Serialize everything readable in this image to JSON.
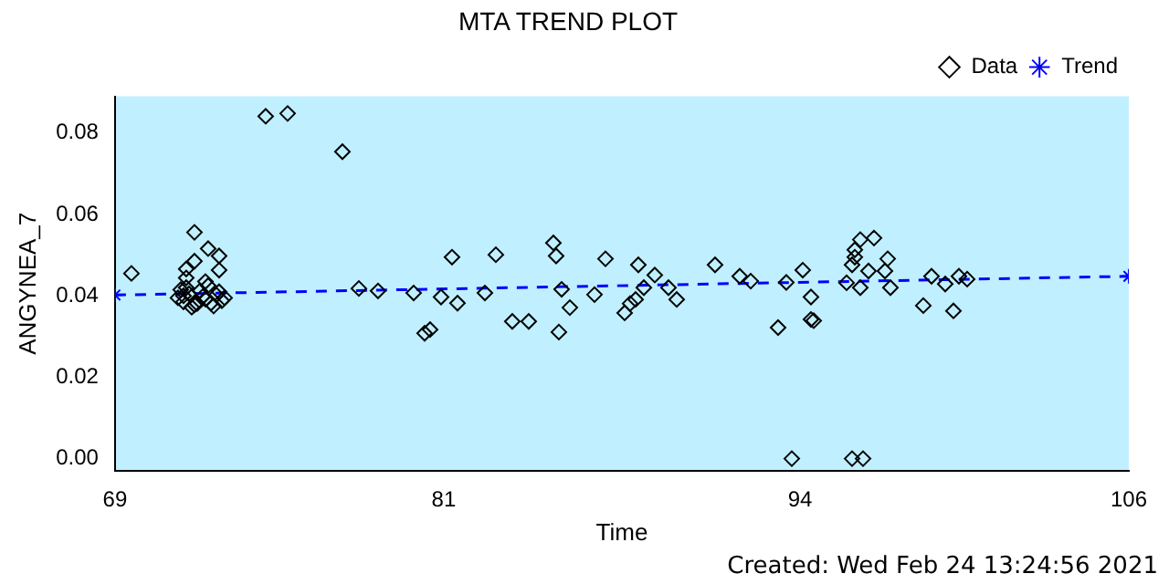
{
  "chart_data": {
    "type": "scatter",
    "title": "MTA TREND PLOT",
    "xlabel": "Time",
    "ylabel": "ANGYNEA_7",
    "annotations": [
      "Created: Wed Feb 24 13:24:56 2021"
    ],
    "xlim": [
      69,
      106
    ],
    "xticks": [
      69,
      81,
      94,
      106
    ],
    "ylim": [
      -0.003,
      0.089
    ],
    "yticks": [
      {
        "value": 0,
        "label": "0.00"
      },
      {
        "value": 0.02,
        "label": "0.02"
      },
      {
        "value": 0.04,
        "label": "0.04"
      },
      {
        "value": 0.06,
        "label": "0.06"
      },
      {
        "value": 0.08,
        "label": "0.08"
      }
    ],
    "grid": false,
    "legend": "top right",
    "series": [
      {
        "name": "Data",
        "type": "scatter",
        "color": "#000000",
        "marker": "diamond",
        "x": [
          69.6,
          74.5,
          75.3,
          77.3,
          71.9,
          72.4,
          72.8,
          71.9,
          71.6,
          72.8,
          71.6,
          71.3,
          71.5,
          71.7,
          71.9,
          72.1,
          72.3,
          72.5,
          72.7,
          72.9,
          71.4,
          71.8,
          72.2,
          72.6,
          73.0,
          71.6,
          72.0,
          72.4,
          72.8,
          71.5,
          72.3,
          77.9,
          78.6,
          79.9,
          80.9,
          81.5,
          80.3,
          80.5,
          81.3,
          82.5,
          82.9,
          83.5,
          84.1,
          85.0,
          85.1,
          85.3,
          85.2,
          85.6,
          86.5,
          86.9,
          88.1,
          87.6,
          87.8,
          88.0,
          88.7,
          88.3,
          89.2,
          89.5,
          90.9,
          91.8,
          92.2,
          93.2,
          93.5,
          94.1,
          94.4,
          94.4,
          94.5,
          93.7,
          95.9,
          96.3,
          96.2,
          96.7,
          96.0,
          95.9,
          95.7,
          96.2,
          96.5,
          97.2,
          97.1,
          97.3,
          96.0,
          98.8,
          99.3,
          99.8,
          100.1,
          98.5,
          99.6
        ],
        "values": [
          0.0455,
          0.0841,
          0.0848,
          0.0754,
          0.0556,
          0.0516,
          0.0498,
          0.0485,
          0.0466,
          0.0463,
          0.0444,
          0.0395,
          0.0385,
          0.0405,
          0.0378,
          0.0412,
          0.0392,
          0.0382,
          0.0402,
          0.0388,
          0.0415,
          0.0372,
          0.0398,
          0.0375,
          0.0395,
          0.042,
          0.0381,
          0.0425,
          0.041,
          0.04,
          0.0435,
          0.0418,
          0.0412,
          0.0407,
          0.0397,
          0.0382,
          0.0308,
          0.0317,
          0.0495,
          0.0407,
          0.0501,
          0.0337,
          0.0337,
          0.053,
          0.0498,
          0.0416,
          0.0311,
          0.0371,
          0.0403,
          0.0491,
          0.0476,
          0.0358,
          0.0381,
          0.0391,
          0.0451,
          0.042,
          0.042,
          0.0391,
          0.0476,
          0.0448,
          0.0436,
          0.0322,
          0.0433,
          0.0463,
          0.0397,
          0.0342,
          0.0339,
          0,
          0,
          0,
          0.0538,
          0.0542,
          0.0513,
          0.0476,
          0.0432,
          0.042,
          0.0461,
          0.0491,
          0.0461,
          0.042,
          0.0495,
          0.0448,
          0.0429,
          0.0448,
          0.0441,
          0.0376,
          0.0363
        ]
      },
      {
        "name": "Trend",
        "type": "line",
        "color": "#0000ff",
        "marker": "cross",
        "line_style": "dashed",
        "x": [
          69,
          106
        ],
        "values": [
          0.0402,
          0.0448
        ]
      }
    ]
  }
}
